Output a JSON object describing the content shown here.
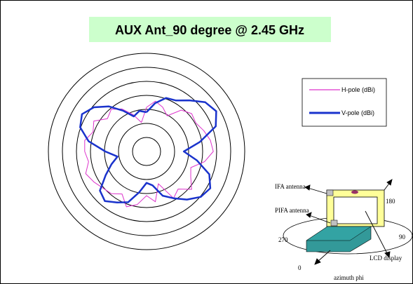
{
  "chart_data": {
    "type": "polar-line",
    "title": "AUX Ant_90 degree @ 2.45 GHz",
    "grid": true,
    "radial_rings": 7,
    "legend": {
      "placement": "right",
      "entries": [
        {
          "label": "H-pole  (dBi)",
          "color": "#dd33cc"
        },
        {
          "label": "V-pole  (dBi)",
          "color": "#1a33cc"
        }
      ]
    },
    "series": [
      {
        "name": "H-pole  (dBi)",
        "color": "#dd33cc",
        "angles_deg": [
          0,
          10,
          20,
          30,
          40,
          50,
          60,
          70,
          80,
          90,
          100,
          110,
          120,
          130,
          140,
          150,
          160,
          170,
          180,
          190,
          200,
          210,
          220,
          230,
          240,
          250,
          260,
          270,
          280,
          290,
          300,
          310,
          320,
          330,
          340,
          350
        ],
        "r": [
          0.45,
          0.52,
          0.48,
          0.42,
          0.55,
          0.6,
          0.58,
          0.62,
          0.66,
          0.68,
          0.6,
          0.48,
          0.52,
          0.6,
          0.5,
          0.55,
          0.35,
          0.52,
          0.45,
          0.55,
          0.6,
          0.5,
          0.56,
          0.58,
          0.62,
          0.66,
          0.6,
          0.63,
          0.64,
          0.58,
          0.62,
          0.52,
          0.56,
          0.5,
          0.4,
          0.3
        ]
      },
      {
        "name": "V-pole  (dBi)",
        "color": "#1a33cc",
        "angles_deg": [
          0,
          10,
          20,
          30,
          40,
          50,
          60,
          70,
          80,
          90,
          100,
          110,
          120,
          130,
          140,
          150,
          160,
          170,
          180,
          190,
          200,
          210,
          220,
          230,
          240,
          250,
          260,
          270,
          280,
          290,
          300,
          310,
          320,
          330,
          340,
          350
        ],
        "r": [
          0.4,
          0.5,
          0.58,
          0.6,
          0.68,
          0.78,
          0.82,
          0.75,
          0.55,
          0.38,
          0.52,
          0.68,
          0.75,
          0.72,
          0.64,
          0.55,
          0.48,
          0.35,
          0.32,
          0.42,
          0.55,
          0.6,
          0.66,
          0.62,
          0.48,
          0.38,
          0.3,
          0.42,
          0.6,
          0.72,
          0.76,
          0.7,
          0.6,
          0.48,
          0.38,
          0.42
        ]
      }
    ]
  },
  "diagram": {
    "labels": {
      "ifa": "IFA antenna",
      "pifa": "PIFA antenna",
      "lcd": "LCD display",
      "angle_0": "0",
      "angle_90": "90",
      "angle_180": "180",
      "angle_270": "270",
      "axis_caption": "azimuth phi"
    }
  }
}
